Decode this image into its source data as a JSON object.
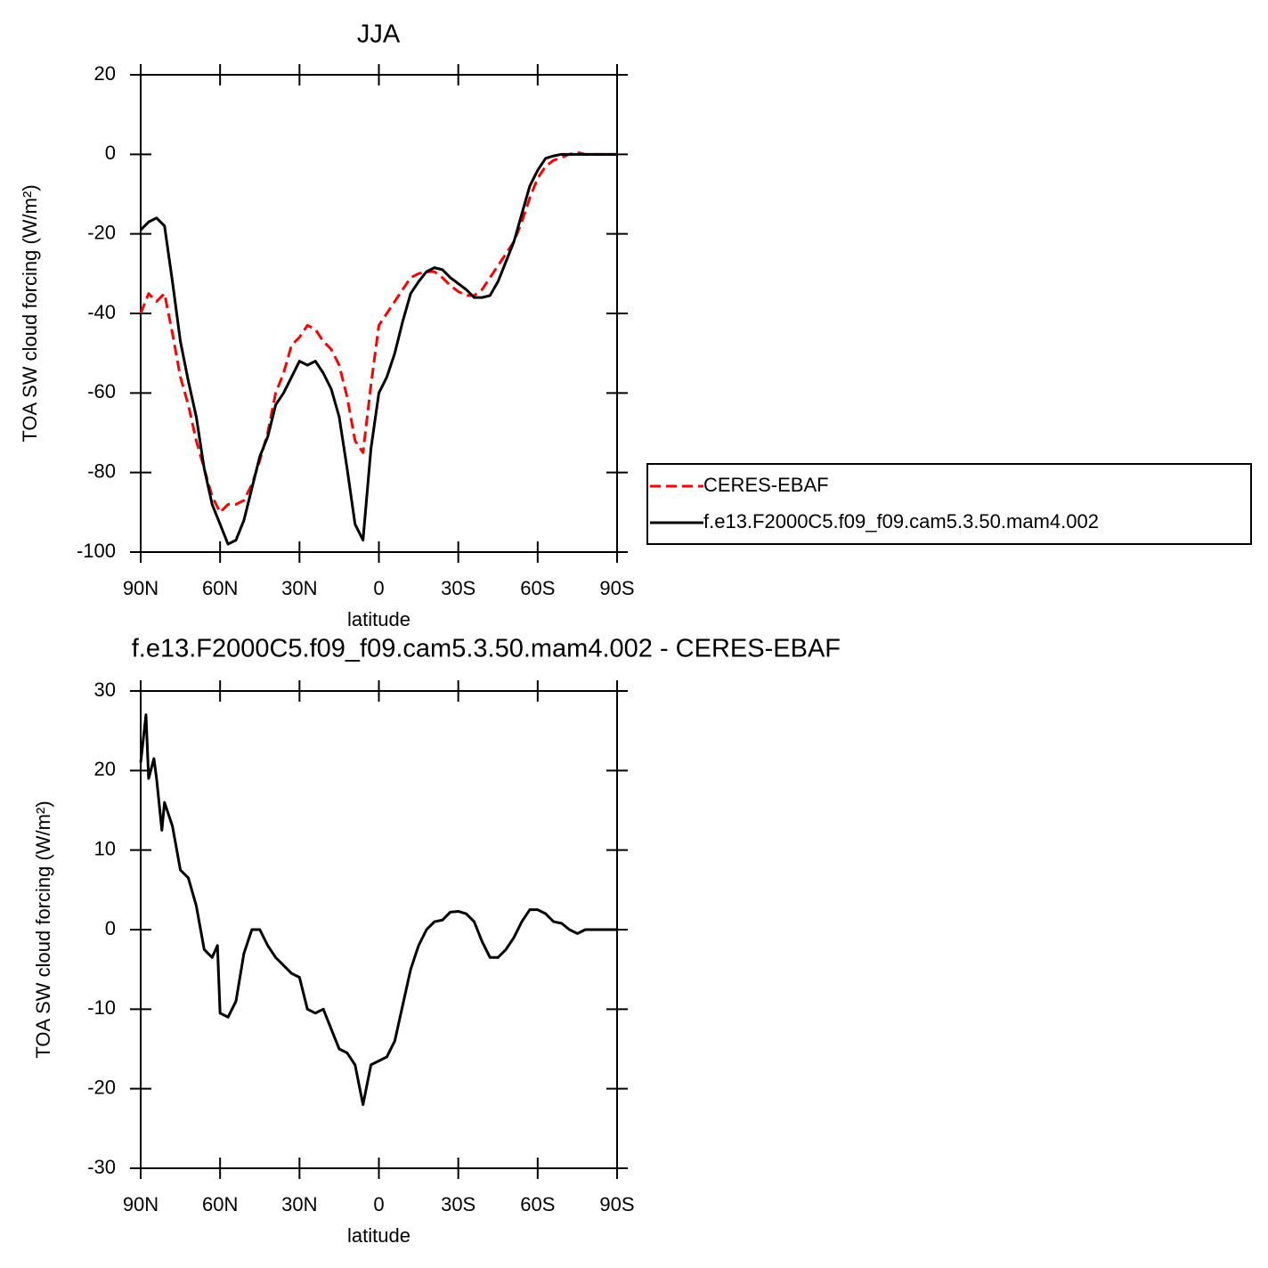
{
  "chart_data": [
    {
      "type": "line",
      "title": "JJA",
      "xlabel": "latitude",
      "ylabel": "TOA SW cloud forcing (W/m²)",
      "x": [
        90,
        87,
        84,
        81,
        78,
        75,
        72,
        69,
        66,
        63,
        60,
        57,
        54,
        51,
        48,
        45,
        42,
        39,
        36,
        33,
        30,
        27,
        24,
        21,
        18,
        15,
        12,
        9,
        6,
        3,
        0,
        -3,
        -6,
        -9,
        -12,
        -15,
        -18,
        -21,
        -24,
        -27,
        -30,
        -33,
        -36,
        -39,
        -42,
        -45,
        -48,
        -51,
        -54,
        -57,
        -60,
        -63,
        -66,
        -69,
        -72,
        -75,
        -78,
        -81,
        -84,
        -87,
        -90
      ],
      "xlim": [
        90,
        -90
      ],
      "xticks": [
        {
          "value": 90,
          "label": "90N"
        },
        {
          "value": 60,
          "label": "60N"
        },
        {
          "value": 30,
          "label": "30N"
        },
        0,
        {
          "value": -30,
          "label": "30S"
        },
        {
          "value": -60,
          "label": "60S"
        },
        {
          "value": -90,
          "label": "90S"
        }
      ],
      "ylim": [
        -100,
        20
      ],
      "yticks": [
        -100,
        -80,
        -60,
        -40,
        -20,
        0,
        20
      ],
      "legend": "right",
      "series": [
        {
          "name": "CERES-EBAF",
          "color": "#ff0000",
          "dash": true,
          "values": [
            -40,
            -35,
            -37,
            -35,
            -45,
            -56,
            -63,
            -72,
            -79,
            -86,
            -90,
            -88,
            -88,
            -87,
            -83,
            -77,
            -70,
            -60,
            -55,
            -48,
            -46,
            -43,
            -44,
            -47,
            -49,
            -53,
            -61,
            -72,
            -75,
            -58,
            -43,
            -40,
            -37,
            -34,
            -31,
            -30,
            -29.5,
            -29.5,
            -31,
            -33,
            -34.5,
            -35.5,
            -35.5,
            -34,
            -31,
            -28,
            -25,
            -22,
            -17,
            -11,
            -6,
            -3,
            -1.5,
            -0.8,
            0,
            0.5,
            0,
            0,
            0,
            0,
            0
          ]
        },
        {
          "name": "f.e13.F2000C5.f09_f09.cam5.3.50.mam4.002",
          "color": "#000000",
          "dash": false,
          "values": [
            -19,
            -17,
            -16,
            -18,
            -32,
            -47,
            -57,
            -66,
            -79,
            -88,
            -93,
            -98,
            -97,
            -92,
            -84,
            -76,
            -71,
            -63,
            -60,
            -56,
            -52,
            -53,
            -52,
            -55,
            -59,
            -66,
            -79,
            -93,
            -97,
            -74,
            -60,
            -56,
            -50,
            -42,
            -35,
            -32,
            -29.5,
            -28.5,
            -29,
            -31,
            -32.5,
            -34,
            -36,
            -36,
            -35.5,
            -32,
            -27,
            -22,
            -15,
            -8,
            -4,
            -1,
            -0.4,
            0,
            0,
            0,
            0,
            0,
            0,
            0,
            0
          ]
        }
      ]
    },
    {
      "type": "line",
      "title": "f.e13.F2000C5.f09_f09.cam5.3.50.mam4.002 - CERES-EBAF",
      "xlabel": "latitude",
      "ylabel": "TOA SW cloud forcing (W/m²)",
      "x": [
        90,
        88,
        87,
        85,
        84,
        82,
        81,
        78,
        75,
        72,
        69,
        66,
        63,
        61,
        60,
        57,
        54,
        51,
        48,
        45,
        42,
        39,
        36,
        33,
        30,
        27,
        24,
        21,
        18,
        15,
        12,
        9,
        6,
        3,
        0,
        -3,
        -6,
        -9,
        -12,
        -15,
        -18,
        -21,
        -24,
        -27,
        -30,
        -33,
        -36,
        -39,
        -42,
        -45,
        -48,
        -51,
        -54,
        -57,
        -60,
        -63,
        -66,
        -69,
        -72,
        -75,
        -78,
        -81,
        -84,
        -87,
        -90
      ],
      "xlim": [
        90,
        -90
      ],
      "xticks": [
        {
          "value": 90,
          "label": "90N"
        },
        {
          "value": 60,
          "label": "60N"
        },
        {
          "value": 30,
          "label": "30N"
        },
        0,
        {
          "value": -30,
          "label": "30S"
        },
        {
          "value": -60,
          "label": "60S"
        },
        {
          "value": -90,
          "label": "90S"
        }
      ],
      "ylim": [
        -30,
        30
      ],
      "yticks": [
        -30,
        -20,
        -10,
        0,
        10,
        20,
        30
      ],
      "color": "#000000",
      "values": [
        21,
        27,
        19,
        21.5,
        19,
        12.5,
        16,
        13,
        7.5,
        6.5,
        3,
        -2.5,
        -3.5,
        -2,
        -10.5,
        -11,
        -9,
        -3,
        0,
        0,
        -2,
        -3.5,
        -4.5,
        -5.5,
        -6,
        -10,
        -10.5,
        -10,
        -12.5,
        -15,
        -15.5,
        -17,
        -22,
        -17,
        -16.5,
        -16,
        -14,
        -9.5,
        -5,
        -2,
        0,
        1,
        1.2,
        2.2,
        2.3,
        2,
        1,
        -1.5,
        -3.5,
        -3.5,
        -2.5,
        -1,
        1,
        2.5,
        2.5,
        2,
        1,
        0.8,
        0,
        -0.5,
        0,
        0,
        0,
        0,
        0
      ]
    }
  ]
}
